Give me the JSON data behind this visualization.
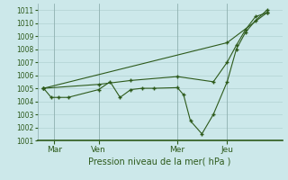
{
  "background_color": "#cce8ea",
  "grid_color": "#aacccc",
  "line_color": "#2d5a1b",
  "ylabel": "Pression niveau de la mer( hPa )",
  "ylim": [
    1001.0,
    1011.5
  ],
  "yticks": [
    1001,
    1002,
    1003,
    1004,
    1005,
    1006,
    1007,
    1008,
    1009,
    1010,
    1011
  ],
  "xlim": [
    0,
    320
  ],
  "xtick_positions": [
    22,
    80,
    183,
    248
  ],
  "xtick_labels": [
    "Mar",
    "Ven",
    "Mer",
    "Jeu"
  ],
  "vline_positions": [
    22,
    80,
    183,
    248
  ],
  "series1": {
    "x": [
      8,
      18,
      28,
      40,
      80,
      95,
      108,
      122,
      137,
      152,
      183,
      191,
      200,
      215,
      230,
      248,
      260,
      272,
      285,
      300
    ],
    "y": [
      1005.0,
      1004.3,
      1004.3,
      1004.3,
      1004.9,
      1005.5,
      1004.3,
      1004.9,
      1005.0,
      1005.0,
      1005.05,
      1004.5,
      1002.5,
      1001.5,
      1003.0,
      1005.5,
      1008.0,
      1009.3,
      1010.2,
      1011.0
    ]
  },
  "series2": {
    "x": [
      8,
      248,
      300
    ],
    "y": [
      1005.0,
      1008.5,
      1010.8
    ]
  },
  "series3": {
    "x": [
      8,
      80,
      122,
      183,
      230,
      248,
      260,
      272,
      285,
      300
    ],
    "y": [
      1005.0,
      1005.3,
      1005.6,
      1005.9,
      1005.5,
      1007.0,
      1008.3,
      1009.5,
      1010.5,
      1010.8
    ]
  }
}
